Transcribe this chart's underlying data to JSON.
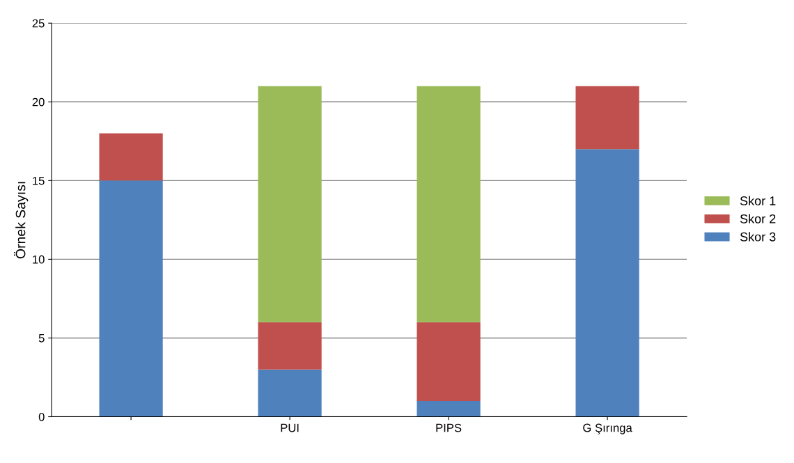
{
  "chart_data": {
    "type": "bar",
    "stacked": true,
    "ylabel": "Örnek Sayısı",
    "categories": [
      null,
      "PUI",
      "PIPS",
      "G Şırınga"
    ],
    "series": [
      {
        "name": "Skor 3",
        "color": "#4f81bd",
        "values": [
          15,
          3,
          1,
          17
        ]
      },
      {
        "name": "Skor 2",
        "color": "#c0504d",
        "values": [
          3,
          3,
          5,
          4
        ]
      },
      {
        "name": "Skor 1",
        "color": "#9bbb59",
        "values": [
          0,
          15,
          15,
          0
        ]
      }
    ],
    "ylim": [
      0,
      25
    ],
    "yticks": [
      0,
      5,
      10,
      15,
      20,
      25
    ],
    "grid": "y",
    "legend": "right"
  }
}
